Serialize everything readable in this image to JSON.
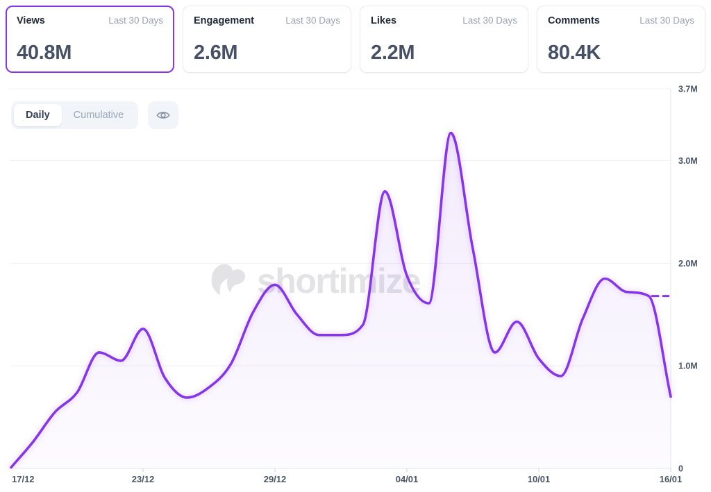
{
  "cards": [
    {
      "label": "Views",
      "period": "Last 30 Days",
      "value": "40.8M",
      "selected": true
    },
    {
      "label": "Engagement",
      "period": "Last 30 Days",
      "value": "2.6M",
      "selected": false
    },
    {
      "label": "Likes",
      "period": "Last 30 Days",
      "value": "2.2M",
      "selected": false
    },
    {
      "label": "Comments",
      "period": "Last 30 Days",
      "value": "80.4K",
      "selected": false
    }
  ],
  "controls": {
    "mode_options": [
      "Daily",
      "Cumulative"
    ],
    "selected_mode": "Daily",
    "visibility_icon": "eye-icon"
  },
  "watermark": {
    "text": "shortimize",
    "logo": "shortimize-logo"
  },
  "colors": {
    "accent": "#8636e8",
    "line": "#8636e8",
    "area_top": "rgba(134,62,232,0.10)",
    "area_bottom": "rgba(134,62,232,0.02)",
    "grid": "#eef1f6",
    "axis": "#e2e7ee",
    "tick": "#ccd3dd",
    "tick_label": "#4a5568",
    "muted": "#9aa3b2"
  },
  "chart_data": {
    "type": "area",
    "series_name": "Views",
    "unit": "millions",
    "dates": [
      "17/12",
      "18/12",
      "19/12",
      "20/12",
      "21/12",
      "22/12",
      "23/12",
      "24/12",
      "25/12",
      "26/12",
      "27/12",
      "28/12",
      "29/12",
      "30/12",
      "31/12",
      "01/01",
      "02/01",
      "03/01",
      "04/01",
      "05/01",
      "06/01",
      "07/01",
      "08/01",
      "09/01",
      "10/01",
      "11/01",
      "12/01",
      "13/01",
      "14/01",
      "15/01",
      "16/01"
    ],
    "values_m": [
      0.01,
      0.26,
      0.55,
      0.74,
      1.13,
      1.05,
      1.36,
      0.88,
      0.69,
      0.79,
      1.02,
      1.52,
      1.79,
      1.5,
      1.3,
      1.3,
      1.4,
      2.7,
      1.88,
      1.61,
      3.27,
      2.14,
      1.13,
      1.43,
      1.07,
      0.9,
      1.46,
      1.85,
      1.72,
      1.68,
      0.7
    ],
    "ylim": [
      0,
      3.7
    ],
    "y_ticks": [
      {
        "label": "3.7M",
        "value": 3.7
      },
      {
        "label": "3.0M",
        "value": 3.0
      },
      {
        "label": "2.0M",
        "value": 2.0
      },
      {
        "label": "1.0M",
        "value": 1.0
      },
      {
        "label": "0",
        "value": 0
      }
    ],
    "x_ticks": [
      {
        "label": "17/12",
        "day_index": 0
      },
      {
        "label": "23/12",
        "day_index": 6
      },
      {
        "label": "29/12",
        "day_index": 12
      },
      {
        "label": "04/01",
        "day_index": 18
      },
      {
        "label": "10/01",
        "day_index": 24
      },
      {
        "label": "16/01",
        "day_index": 30
      }
    ],
    "dashed_projection": {
      "value_m": 1.68,
      "day_start": 29.15,
      "day_end": 29.9
    },
    "grid": true,
    "legend": false
  }
}
